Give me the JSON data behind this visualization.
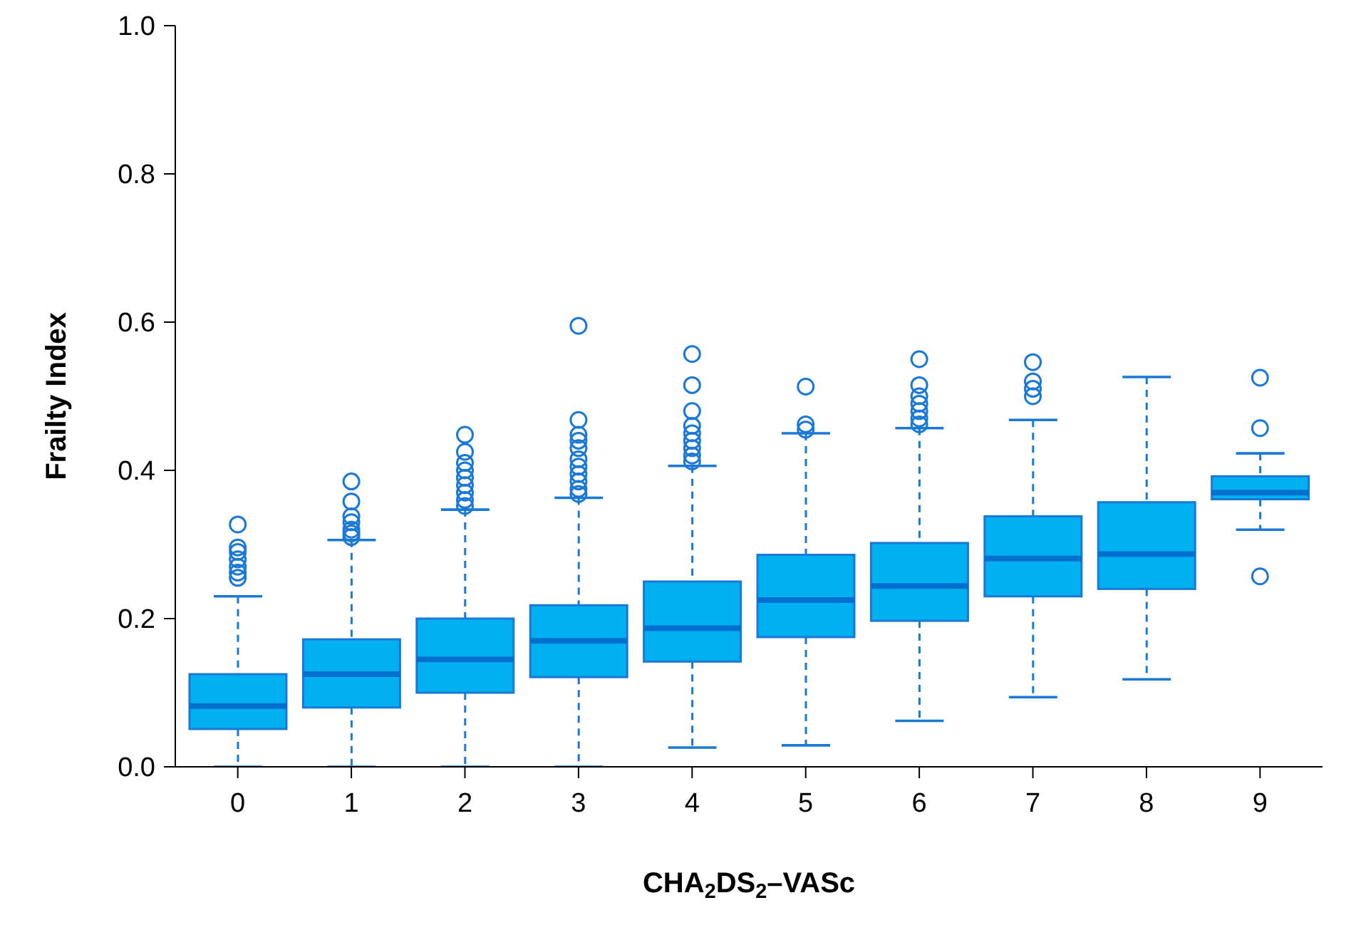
{
  "chart_data": {
    "type": "box",
    "xlabel": "CHA$_{2}$DS$_{2}$–VASc",
    "ylabel": "Frailty Index",
    "categories": [
      "0",
      "1",
      "2",
      "3",
      "4",
      "5",
      "6",
      "7",
      "8",
      "9"
    ],
    "ylim": [
      0,
      1
    ],
    "yticks": [
      {
        "value": 0,
        "label": "0.0"
      },
      {
        "value": 0.2,
        "label": "0.2"
      },
      {
        "value": 0.4,
        "label": "0.4"
      },
      {
        "value": 0.6,
        "label": "0.6"
      },
      {
        "value": 0.8,
        "label": "0.8"
      },
      {
        "value": 1,
        "label": "1.0"
      }
    ],
    "grid": false,
    "legend": false,
    "series": [
      {
        "color": "#00b0f0",
        "boxes": [
          {
            "low": 0,
            "q1": 0.051,
            "median": 0.082,
            "q3": 0.125,
            "high": 0.23,
            "outliers": [
              0.255,
              0.262,
              0.27,
              0.28,
              0.29,
              0.296,
              0.327
            ]
          },
          {
            "low": 0,
            "q1": 0.08,
            "median": 0.125,
            "q3": 0.172,
            "high": 0.306,
            "outliers": [
              0.31,
              0.315,
              0.32,
              0.33,
              0.338,
              0.358,
              0.385
            ]
          },
          {
            "low": 0,
            "q1": 0.1,
            "median": 0.145,
            "q3": 0.2,
            "high": 0.347,
            "outliers": [
              0.352,
              0.36,
              0.37,
              0.38,
              0.39,
              0.4,
              0.41,
              0.425,
              0.448
            ]
          },
          {
            "low": 0,
            "q1": 0.121,
            "median": 0.17,
            "q3": 0.218,
            "high": 0.363,
            "outliers": [
              0.368,
              0.375,
              0.385,
              0.395,
              0.405,
              0.415,
              0.43,
              0.44,
              0.448,
              0.468,
              0.595
            ]
          },
          {
            "low": 0.026,
            "q1": 0.142,
            "median": 0.187,
            "q3": 0.25,
            "high": 0.406,
            "outliers": [
              0.412,
              0.42,
              0.43,
              0.44,
              0.45,
              0.46,
              0.48,
              0.515,
              0.557
            ]
          },
          {
            "low": 0.029,
            "q1": 0.175,
            "median": 0.225,
            "q3": 0.286,
            "high": 0.45,
            "outliers": [
              0.455,
              0.462,
              0.513
            ]
          },
          {
            "low": 0.062,
            "q1": 0.197,
            "median": 0.244,
            "q3": 0.302,
            "high": 0.457,
            "outliers": [
              0.462,
              0.47,
              0.48,
              0.49,
              0.5,
              0.515,
              0.55
            ]
          },
          {
            "low": 0.094,
            "q1": 0.23,
            "median": 0.281,
            "q3": 0.338,
            "high": 0.468,
            "outliers": [
              0.5,
              0.51,
              0.52,
              0.546
            ]
          },
          {
            "low": 0.118,
            "q1": 0.24,
            "median": 0.287,
            "q3": 0.357,
            "high": 0.526
          },
          {
            "low": 0.32,
            "q1": 0.361,
            "median": 0.37,
            "q3": 0.392,
            "high": 0.423,
            "outliers": [
              0.257,
              0.457,
              0.525
            ]
          }
        ]
      }
    ]
  }
}
